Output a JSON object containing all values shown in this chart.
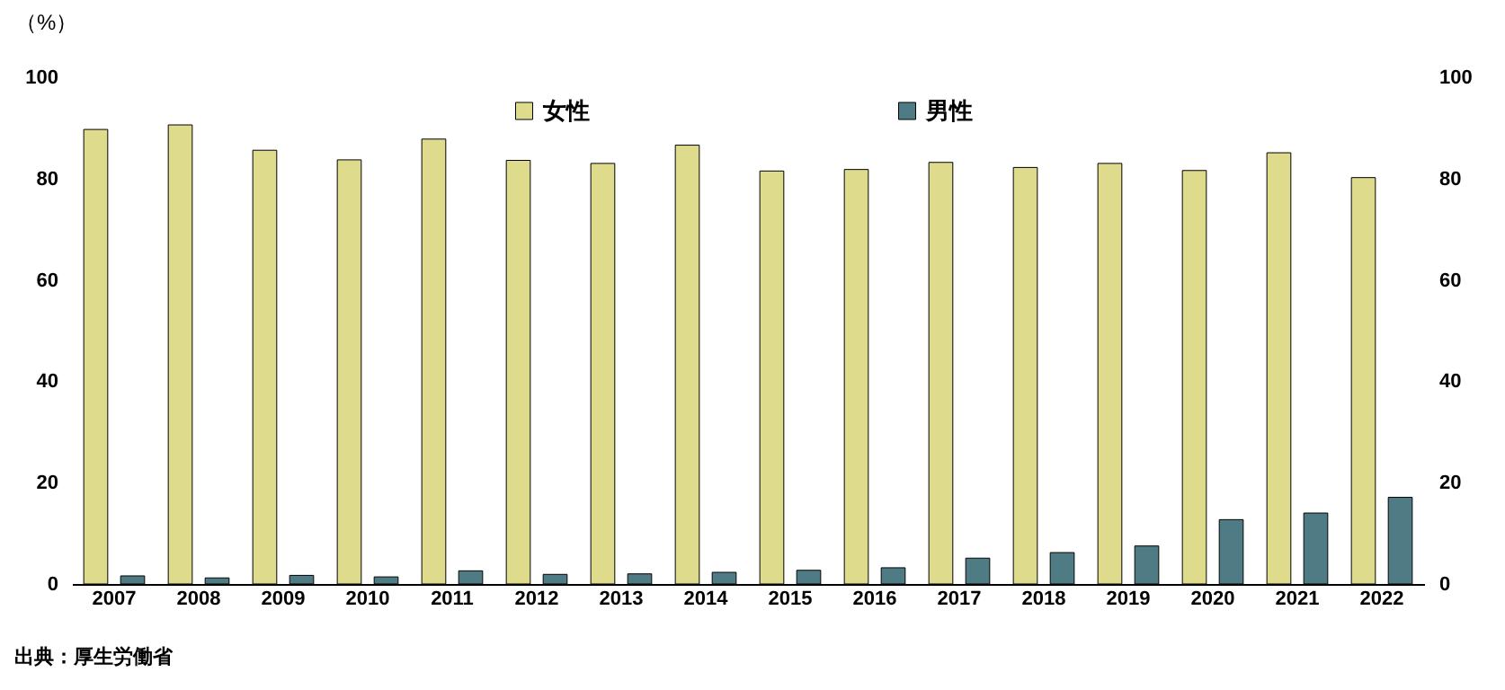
{
  "chart_data": {
    "type": "bar",
    "ylabel": "（%）",
    "categories": [
      "2007",
      "2008",
      "2009",
      "2010",
      "2011",
      "2012",
      "2013",
      "2014",
      "2015",
      "2016",
      "2017",
      "2018",
      "2019",
      "2020",
      "2021",
      "2022"
    ],
    "series": [
      {
        "name": "女性",
        "color": "#dedb8c",
        "values": [
          89.7,
          90.6,
          85.6,
          83.7,
          87.8,
          83.6,
          83.0,
          86.6,
          81.5,
          81.8,
          83.2,
          82.2,
          83.0,
          81.6,
          85.1,
          80.2
        ]
      },
      {
        "name": "男性",
        "color": "#4f7c84",
        "values": [
          1.6,
          1.2,
          1.7,
          1.4,
          2.6,
          1.9,
          2.0,
          2.3,
          2.7,
          3.2,
          5.1,
          6.2,
          7.5,
          12.7,
          14.0,
          17.1
        ]
      }
    ],
    "ylim": [
      0,
      100
    ],
    "yticks": [
      0,
      20,
      40,
      60,
      80,
      100
    ],
    "y2lim": [
      0,
      100
    ],
    "y2ticks": [
      0,
      20,
      40,
      60,
      80,
      100
    ],
    "grid": false,
    "legend": "top",
    "annotations": [
      "出典：厚生労働省"
    ]
  }
}
